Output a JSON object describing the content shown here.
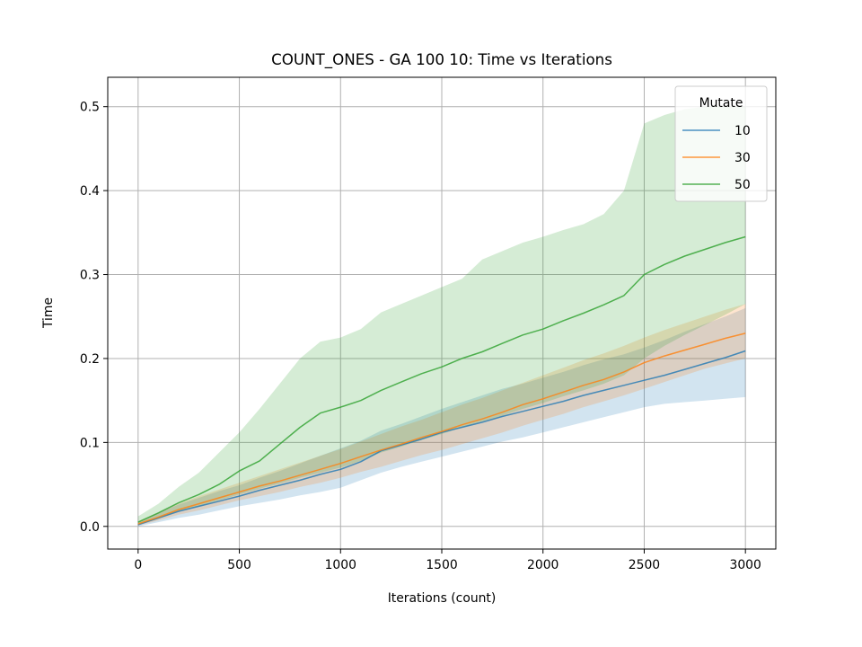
{
  "chart_data": {
    "type": "line",
    "title": "COUNT_ONES - GA 100 10: Time vs Iterations",
    "xlabel": "Iterations (count)",
    "ylabel": "Time",
    "xlim": [
      -150,
      3150
    ],
    "ylim": [
      -0.027,
      0.535
    ],
    "xticks": [
      0,
      500,
      1000,
      1500,
      2000,
      2500,
      3000
    ],
    "yticks": [
      0.0,
      0.1,
      0.2,
      0.3,
      0.4,
      0.5
    ],
    "xtick_labels": [
      "0",
      "500",
      "1000",
      "1500",
      "2000",
      "2500",
      "3000"
    ],
    "ytick_labels": [
      "0.0",
      "0.1",
      "0.2",
      "0.3",
      "0.4",
      "0.5"
    ],
    "grid": true,
    "legend": {
      "title": "Mutate",
      "placement": "top-right"
    },
    "x": [
      0,
      100,
      200,
      300,
      400,
      500,
      600,
      700,
      800,
      900,
      1000,
      1100,
      1200,
      1300,
      1400,
      1500,
      1600,
      1700,
      1800,
      1900,
      2000,
      2100,
      2200,
      2300,
      2400,
      2500,
      2600,
      2700,
      2800,
      2900,
      3000
    ],
    "series": [
      {
        "name": "10",
        "color": "#1f77b4",
        "values": [
          0.002,
          0.01,
          0.018,
          0.024,
          0.03,
          0.036,
          0.043,
          0.049,
          0.055,
          0.062,
          0.068,
          0.077,
          0.09,
          0.097,
          0.104,
          0.112,
          0.118,
          0.124,
          0.131,
          0.137,
          0.143,
          0.149,
          0.156,
          0.162,
          0.168,
          0.174,
          0.18,
          0.187,
          0.194,
          0.201,
          0.209
        ],
        "lower": [
          0.0,
          0.005,
          0.01,
          0.014,
          0.019,
          0.024,
          0.028,
          0.032,
          0.037,
          0.041,
          0.046,
          0.055,
          0.064,
          0.071,
          0.077,
          0.083,
          0.089,
          0.095,
          0.101,
          0.106,
          0.112,
          0.118,
          0.124,
          0.13,
          0.136,
          0.142,
          0.146,
          0.148,
          0.15,
          0.152,
          0.154
        ],
        "upper": [
          0.005,
          0.016,
          0.026,
          0.034,
          0.042,
          0.049,
          0.058,
          0.066,
          0.075,
          0.084,
          0.093,
          0.102,
          0.114,
          0.122,
          0.131,
          0.14,
          0.148,
          0.156,
          0.164,
          0.17,
          0.177,
          0.184,
          0.192,
          0.199,
          0.205,
          0.213,
          0.222,
          0.232,
          0.241,
          0.25,
          0.26
        ]
      },
      {
        "name": "30",
        "color": "#ff7f0e",
        "values": [
          0.003,
          0.011,
          0.02,
          0.027,
          0.034,
          0.041,
          0.048,
          0.054,
          0.061,
          0.068,
          0.075,
          0.083,
          0.091,
          0.098,
          0.106,
          0.113,
          0.121,
          0.128,
          0.136,
          0.145,
          0.152,
          0.16,
          0.168,
          0.175,
          0.184,
          0.195,
          0.203,
          0.21,
          0.217,
          0.224,
          0.23
        ],
        "lower": [
          0.001,
          0.007,
          0.014,
          0.019,
          0.025,
          0.031,
          0.036,
          0.041,
          0.047,
          0.052,
          0.058,
          0.065,
          0.071,
          0.078,
          0.085,
          0.091,
          0.098,
          0.105,
          0.112,
          0.12,
          0.127,
          0.134,
          0.142,
          0.149,
          0.156,
          0.164,
          0.172,
          0.18,
          0.188,
          0.194,
          0.2
        ],
        "upper": [
          0.006,
          0.016,
          0.027,
          0.036,
          0.044,
          0.052,
          0.06,
          0.068,
          0.076,
          0.084,
          0.092,
          0.101,
          0.11,
          0.119,
          0.127,
          0.136,
          0.145,
          0.153,
          0.162,
          0.171,
          0.18,
          0.189,
          0.198,
          0.206,
          0.215,
          0.225,
          0.234,
          0.242,
          0.25,
          0.258,
          0.265
        ]
      },
      {
        "name": "50",
        "color": "#2ca02c",
        "values": [
          0.005,
          0.016,
          0.028,
          0.038,
          0.05,
          0.066,
          0.078,
          0.098,
          0.118,
          0.135,
          0.142,
          0.15,
          0.162,
          0.172,
          0.182,
          0.19,
          0.2,
          0.208,
          0.218,
          0.228,
          0.235,
          0.245,
          0.254,
          0.264,
          0.275,
          0.3,
          0.312,
          0.322,
          0.33,
          0.338,
          0.345
        ],
        "lower": [
          0.002,
          0.009,
          0.018,
          0.024,
          0.031,
          0.038,
          0.045,
          0.051,
          0.058,
          0.064,
          0.07,
          0.078,
          0.088,
          0.095,
          0.103,
          0.11,
          0.118,
          0.125,
          0.132,
          0.14,
          0.147,
          0.155,
          0.162,
          0.17,
          0.18,
          0.2,
          0.215,
          0.228,
          0.24,
          0.252,
          0.265
        ],
        "upper": [
          0.012,
          0.027,
          0.047,
          0.064,
          0.088,
          0.112,
          0.14,
          0.17,
          0.2,
          0.22,
          0.225,
          0.235,
          0.255,
          0.265,
          0.275,
          0.285,
          0.295,
          0.318,
          0.328,
          0.338,
          0.345,
          0.353,
          0.36,
          0.372,
          0.4,
          0.48,
          0.49,
          0.497,
          0.5,
          0.5,
          0.5
        ]
      }
    ]
  }
}
